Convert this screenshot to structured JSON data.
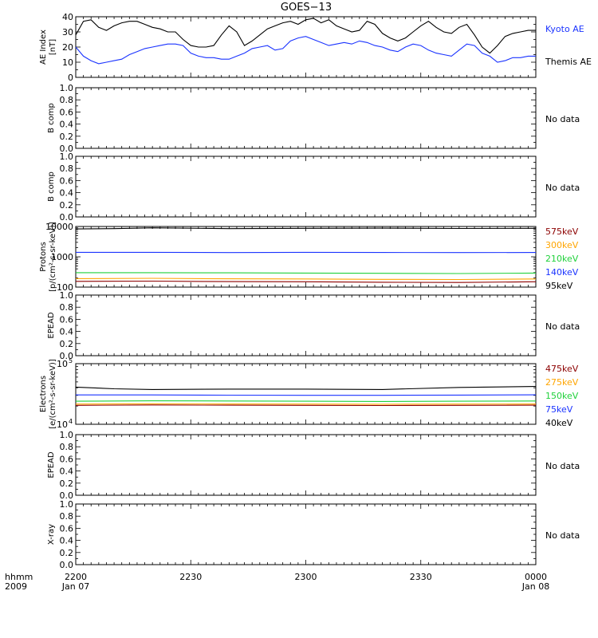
{
  "title": "GOES−13",
  "time_axis": {
    "row_label": "hhmm",
    "year_label": "2009",
    "tick_labels": [
      "2200",
      "2230",
      "2300",
      "2330",
      "0000"
    ],
    "date_labels": [
      "Jan 07",
      "Jan 08"
    ]
  },
  "colors": {
    "black": "#000000",
    "blue": "#1a33ff",
    "green": "#1fd13a",
    "orange": "#ffa500",
    "red": "#b5001a",
    "dark_red": "#8c0000"
  },
  "panels": [
    {
      "ylabel": [
        "AE Index",
        "[nT]"
      ],
      "no_data": ""
    },
    {
      "ylabel": [
        "B comp"
      ],
      "no_data": "No data"
    },
    {
      "ylabel": [
        "B comp"
      ],
      "no_data": "No data"
    },
    {
      "ylabel": [
        "Protons",
        "[p/(cm²-s-sr-keV)]"
      ],
      "no_data": ""
    },
    {
      "ylabel": [
        "EPEAD"
      ],
      "no_data": "No data"
    },
    {
      "ylabel": [
        "Electrons",
        "[e/(cm²-s-sr-keV)]"
      ],
      "no_data": ""
    },
    {
      "ylabel": [
        "EPEAD"
      ],
      "no_data": "No data"
    },
    {
      "ylabel": [
        "X-ray"
      ],
      "no_data": "No data"
    }
  ],
  "chart_data": [
    {
      "type": "line",
      "panel": 0,
      "ylabel": "AE Index [nT]",
      "ylim": [
        0,
        40
      ],
      "yticks": [
        "0",
        "10",
        "20",
        "30",
        "40"
      ],
      "x_units": "minutes after 2200 UT, Jan 07 2009",
      "xlim": [
        0,
        120
      ],
      "series": [
        {
          "name": "Kyoto AE",
          "color": "blue",
          "x": [
            0,
            2,
            4,
            6,
            8,
            10,
            12,
            14,
            16,
            18,
            20,
            22,
            24,
            26,
            28,
            30,
            32,
            34,
            36,
            38,
            40,
            42,
            44,
            46,
            48,
            50,
            52,
            54,
            56,
            58,
            60,
            62,
            64,
            66,
            68,
            70,
            72,
            74,
            76,
            78,
            80,
            82,
            84,
            86,
            88,
            90,
            92,
            94,
            96,
            98,
            100,
            102,
            104,
            106,
            108,
            110,
            112,
            114,
            116,
            118,
            120
          ],
          "y": [
            20,
            14,
            11,
            9,
            10,
            11,
            12,
            15,
            17,
            19,
            20,
            21,
            22,
            22,
            21,
            16,
            14,
            13,
            13,
            12,
            12,
            14,
            16,
            19,
            20,
            21,
            18,
            19,
            24,
            26,
            27,
            25,
            23,
            21,
            22,
            23,
            22,
            24,
            23,
            21,
            20,
            18,
            17,
            20,
            22,
            21,
            18,
            16,
            15,
            14,
            18,
            22,
            21,
            16,
            14,
            10,
            11,
            13,
            13,
            14,
            14
          ]
        },
        {
          "name": "Themis AE",
          "color": "black",
          "x": [
            0,
            2,
            4,
            6,
            8,
            10,
            12,
            14,
            16,
            18,
            20,
            22,
            24,
            26,
            28,
            30,
            32,
            34,
            36,
            38,
            40,
            42,
            44,
            46,
            48,
            50,
            52,
            54,
            56,
            58,
            60,
            62,
            64,
            66,
            68,
            70,
            72,
            74,
            76,
            78,
            80,
            82,
            84,
            86,
            88,
            90,
            92,
            94,
            96,
            98,
            100,
            102,
            104,
            106,
            108,
            110,
            112,
            114,
            116,
            118,
            120
          ],
          "y": [
            28,
            37,
            38,
            33,
            31,
            34,
            36,
            37,
            37,
            35,
            33,
            32,
            30,
            30,
            25,
            21,
            20,
            20,
            21,
            28,
            34,
            30,
            21,
            24,
            28,
            32,
            34,
            36,
            37,
            35,
            38,
            39,
            36,
            38,
            34,
            32,
            30,
            31,
            37,
            35,
            29,
            26,
            24,
            26,
            30,
            34,
            37,
            33,
            30,
            29,
            33,
            35,
            28,
            20,
            16,
            21,
            27,
            29,
            30,
            31,
            31
          ]
        }
      ]
    },
    {
      "type": "line",
      "panel": 1,
      "ylabel": "B comp",
      "ylim": [
        0,
        1
      ],
      "yticks": [
        "0.0",
        "0.2",
        "0.4",
        "0.6",
        "0.8",
        "1.0"
      ],
      "series": [],
      "note": "No data"
    },
    {
      "type": "line",
      "panel": 2,
      "ylabel": "B comp",
      "ylim": [
        0,
        1
      ],
      "yticks": [
        "0.0",
        "0.2",
        "0.4",
        "0.6",
        "0.8",
        "1.0"
      ],
      "series": [],
      "note": "No data"
    },
    {
      "type": "line",
      "panel": 3,
      "ylabel": "Protons [p/(cm²-s-sr-keV)]",
      "log_scale": true,
      "ylim": [
        100,
        10000
      ],
      "yticks": [
        "100",
        "1000",
        "10000"
      ],
      "x_units": "minutes after 2200 UT, Jan 07 2009",
      "xlim": [
        0,
        120
      ],
      "series": [
        {
          "name": "575keV",
          "color": "dark_red",
          "x": [
            0,
            20,
            40,
            60,
            80,
            100,
            120
          ],
          "y": [
            155,
            158,
            152,
            150,
            145,
            142,
            150
          ]
        },
        {
          "name": "300keV",
          "color": "orange",
          "x": [
            0,
            20,
            40,
            60,
            80,
            100,
            120
          ],
          "y": [
            190,
            195,
            188,
            185,
            180,
            178,
            185
          ]
        },
        {
          "name": "210keV",
          "color": "green",
          "x": [
            0,
            20,
            40,
            60,
            80,
            100,
            120
          ],
          "y": [
            300,
            300,
            295,
            290,
            285,
            280,
            290
          ]
        },
        {
          "name": "140keV",
          "color": "blue",
          "x": [
            0,
            20,
            40,
            60,
            80,
            100,
            120
          ],
          "y": [
            1400,
            1400,
            1380,
            1400,
            1390,
            1380,
            1390
          ]
        },
        {
          "name": "95keV",
          "color": "black",
          "x": [
            0,
            10,
            20,
            40,
            60,
            80,
            100,
            120
          ],
          "y": [
            8300,
            8500,
            9000,
            8500,
            8700,
            8800,
            8600,
            8700
          ]
        }
      ]
    },
    {
      "type": "line",
      "panel": 4,
      "ylabel": "EPEAD",
      "ylim": [
        0,
        1
      ],
      "yticks": [
        "0.0",
        "0.2",
        "0.4",
        "0.6",
        "0.8",
        "1.0"
      ],
      "series": [],
      "note": "No data"
    },
    {
      "type": "line",
      "panel": 5,
      "ylabel": "Electrons [e/(cm²-s-sr-keV)]",
      "log_scale": true,
      "ylim": [
        10000,
        100000
      ],
      "ytick_exponents": [
        4,
        5
      ],
      "x_units": "minutes after 2200 UT, Jan 07 2009",
      "xlim": [
        0,
        120
      ],
      "series": [
        {
          "name": "475keV",
          "color": "dark_red",
          "x": [
            0,
            20,
            40,
            60,
            80,
            100,
            120
          ],
          "y": [
            20500,
            20800,
            20600,
            20500,
            20400,
            20500,
            20600
          ]
        },
        {
          "name": "275keV",
          "color": "orange",
          "x": [
            0,
            20,
            40,
            60,
            80,
            100,
            120
          ],
          "y": [
            21500,
            21800,
            21600,
            21500,
            21400,
            21500,
            21600
          ]
        },
        {
          "name": "150keV",
          "color": "green",
          "x": [
            0,
            20,
            40,
            60,
            80,
            100,
            120
          ],
          "y": [
            24000,
            24400,
            24200,
            24000,
            23800,
            24000,
            24200
          ]
        },
        {
          "name": "75keV",
          "color": "blue",
          "x": [
            0,
            20,
            40,
            60,
            80,
            100,
            120
          ],
          "y": [
            30500,
            30500,
            30200,
            30000,
            30000,
            30300,
            30600
          ]
        },
        {
          "name": "40keV",
          "color": "black",
          "x": [
            0,
            10,
            20,
            40,
            60,
            80,
            100,
            120
          ],
          "y": [
            41000,
            38500,
            37500,
            38000,
            38000,
            37500,
            40500,
            42000
          ]
        }
      ]
    },
    {
      "type": "line",
      "panel": 6,
      "ylabel": "EPEAD",
      "ylim": [
        0,
        1
      ],
      "yticks": [
        "0.0",
        "0.2",
        "0.4",
        "0.6",
        "0.8",
        "1.0"
      ],
      "series": [],
      "note": "No data"
    },
    {
      "type": "line",
      "panel": 7,
      "ylabel": "X-ray",
      "ylim": [
        0,
        1
      ],
      "yticks": [
        "0.0",
        "0.2",
        "0.4",
        "0.6",
        "0.8",
        "1.0"
      ],
      "series": [],
      "note": "No data"
    }
  ]
}
